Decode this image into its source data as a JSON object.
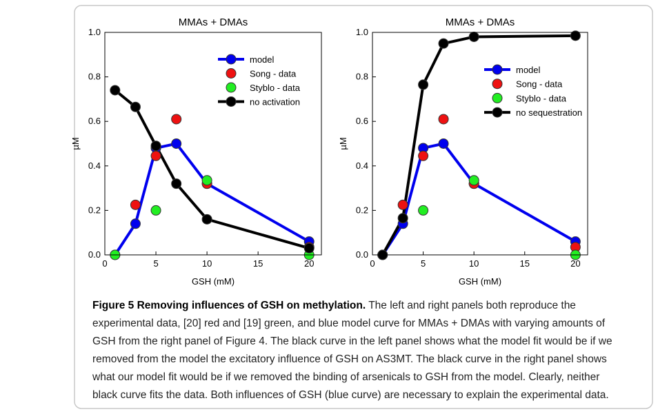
{
  "chart_data": [
    {
      "type": "line",
      "title": "MMAs + DMAs",
      "xlabel": "GSH (mM)",
      "ylabel": "µM",
      "xlim": [
        0,
        21.2
      ],
      "xticks": [
        0,
        5,
        10,
        15,
        20
      ],
      "ylim": [
        0,
        1.0
      ],
      "yticks": [
        {
          "value": 0,
          "label": "0.0"
        },
        0.2,
        0.4,
        0.6,
        0.8,
        {
          "value": 1.0,
          "label": "1.0"
        }
      ],
      "legend": "upper right",
      "series": [
        {
          "name": "model",
          "color": "#0000ee",
          "mode": "lines+markers",
          "x": [
            1,
            3,
            5,
            7,
            10,
            20
          ],
          "values": [
            0,
            0.14,
            0.48,
            0.5,
            0.32,
            0.06
          ]
        },
        {
          "name": "Song - data",
          "color": "#ee1111",
          "mode": "markers",
          "x": [
            3,
            5,
            7,
            10,
            20
          ],
          "values": [
            0.225,
            0.445,
            0.61,
            0.32,
            0.035
          ]
        },
        {
          "name": "Styblo - data",
          "color": "#22ee22",
          "mode": "markers",
          "x": [
            1,
            5,
            10,
            20
          ],
          "values": [
            0,
            0.2,
            0.335,
            0
          ]
        },
        {
          "name": "no activation",
          "color": "#000000",
          "mode": "lines+markers",
          "x": [
            1,
            3,
            5,
            7,
            10,
            20
          ],
          "values": [
            0.74,
            0.665,
            0.49,
            0.32,
            0.16,
            0.03
          ]
        }
      ]
    },
    {
      "type": "line",
      "title": "MMAs + DMAs",
      "xlabel": "GSH (mM)",
      "ylabel": "µM",
      "xlim": [
        0,
        21.2
      ],
      "xticks": [
        0,
        5,
        10,
        15,
        20
      ],
      "ylim": [
        0,
        1.0
      ],
      "yticks": [
        {
          "value": 0,
          "label": "0.0"
        },
        0.2,
        0.4,
        0.6,
        0.8,
        {
          "value": 1.0,
          "label": "1.0"
        }
      ],
      "legend": "center right",
      "series": [
        {
          "name": "model",
          "color": "#0000ee",
          "mode": "lines+markers",
          "x": [
            1,
            3,
            5,
            7,
            10,
            20
          ],
          "values": [
            0,
            0.14,
            0.48,
            0.5,
            0.32,
            0.06
          ]
        },
        {
          "name": "Song - data",
          "color": "#ee1111",
          "mode": "markers",
          "x": [
            3,
            5,
            7,
            10,
            20
          ],
          "values": [
            0.225,
            0.445,
            0.61,
            0.32,
            0.035
          ]
        },
        {
          "name": "Styblo - data",
          "color": "#22ee22",
          "mode": "markers",
          "x": [
            1,
            5,
            10,
            20
          ],
          "values": [
            0,
            0.2,
            0.335,
            0
          ]
        },
        {
          "name": "no sequestration",
          "color": "#000000",
          "mode": "lines+markers",
          "x": [
            1,
            3,
            5,
            7,
            10,
            20
          ],
          "values": [
            0,
            0.165,
            0.765,
            0.95,
            0.98,
            0.985
          ]
        }
      ]
    }
  ],
  "caption": {
    "title": "Figure 5 Removing influences of GSH on methylation.",
    "lines": [
      "The left and right panels both reproduce the",
      "experimental data, [20] red and [19] green, and blue model curve for MMAs + DMAs with varying amounts of",
      "GSH from the right panel of Figure 4. The black curve in the left panel shows what the model fit would be if we",
      "removed from the model the excitatory influence of GSH on AS3MT. The black curve in the right panel shows",
      "what our model fit would be if we removed the binding of arsenicals to GSH from the model. Clearly, neither",
      "black curve fits the data. Both influences of GSH (blue curve) are necessary to explain the experimental data."
    ]
  }
}
